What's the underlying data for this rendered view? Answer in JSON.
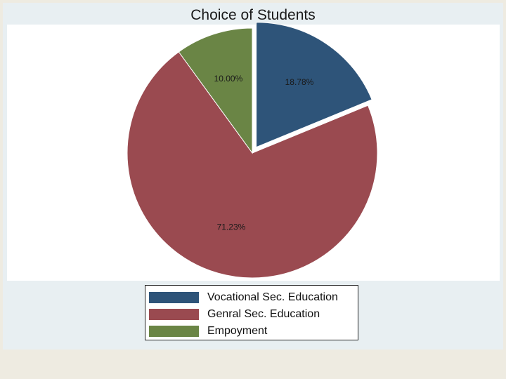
{
  "chart_data": {
    "type": "pie",
    "title": "Choice of Students",
    "slices": [
      {
        "label": "Vocational Sec. Education",
        "value": 18.78,
        "display": "18.78%",
        "color": "#2e5479",
        "exploded": true
      },
      {
        "label": "Genral Sec. Education",
        "value": 71.23,
        "display": "71.23%",
        "color": "#9a4a50",
        "exploded": false
      },
      {
        "label": "Empoyment",
        "value": 10.0,
        "display": "10.00%",
        "color": "#6a8545",
        "exploded": false
      }
    ],
    "legend_position": "bottom"
  }
}
